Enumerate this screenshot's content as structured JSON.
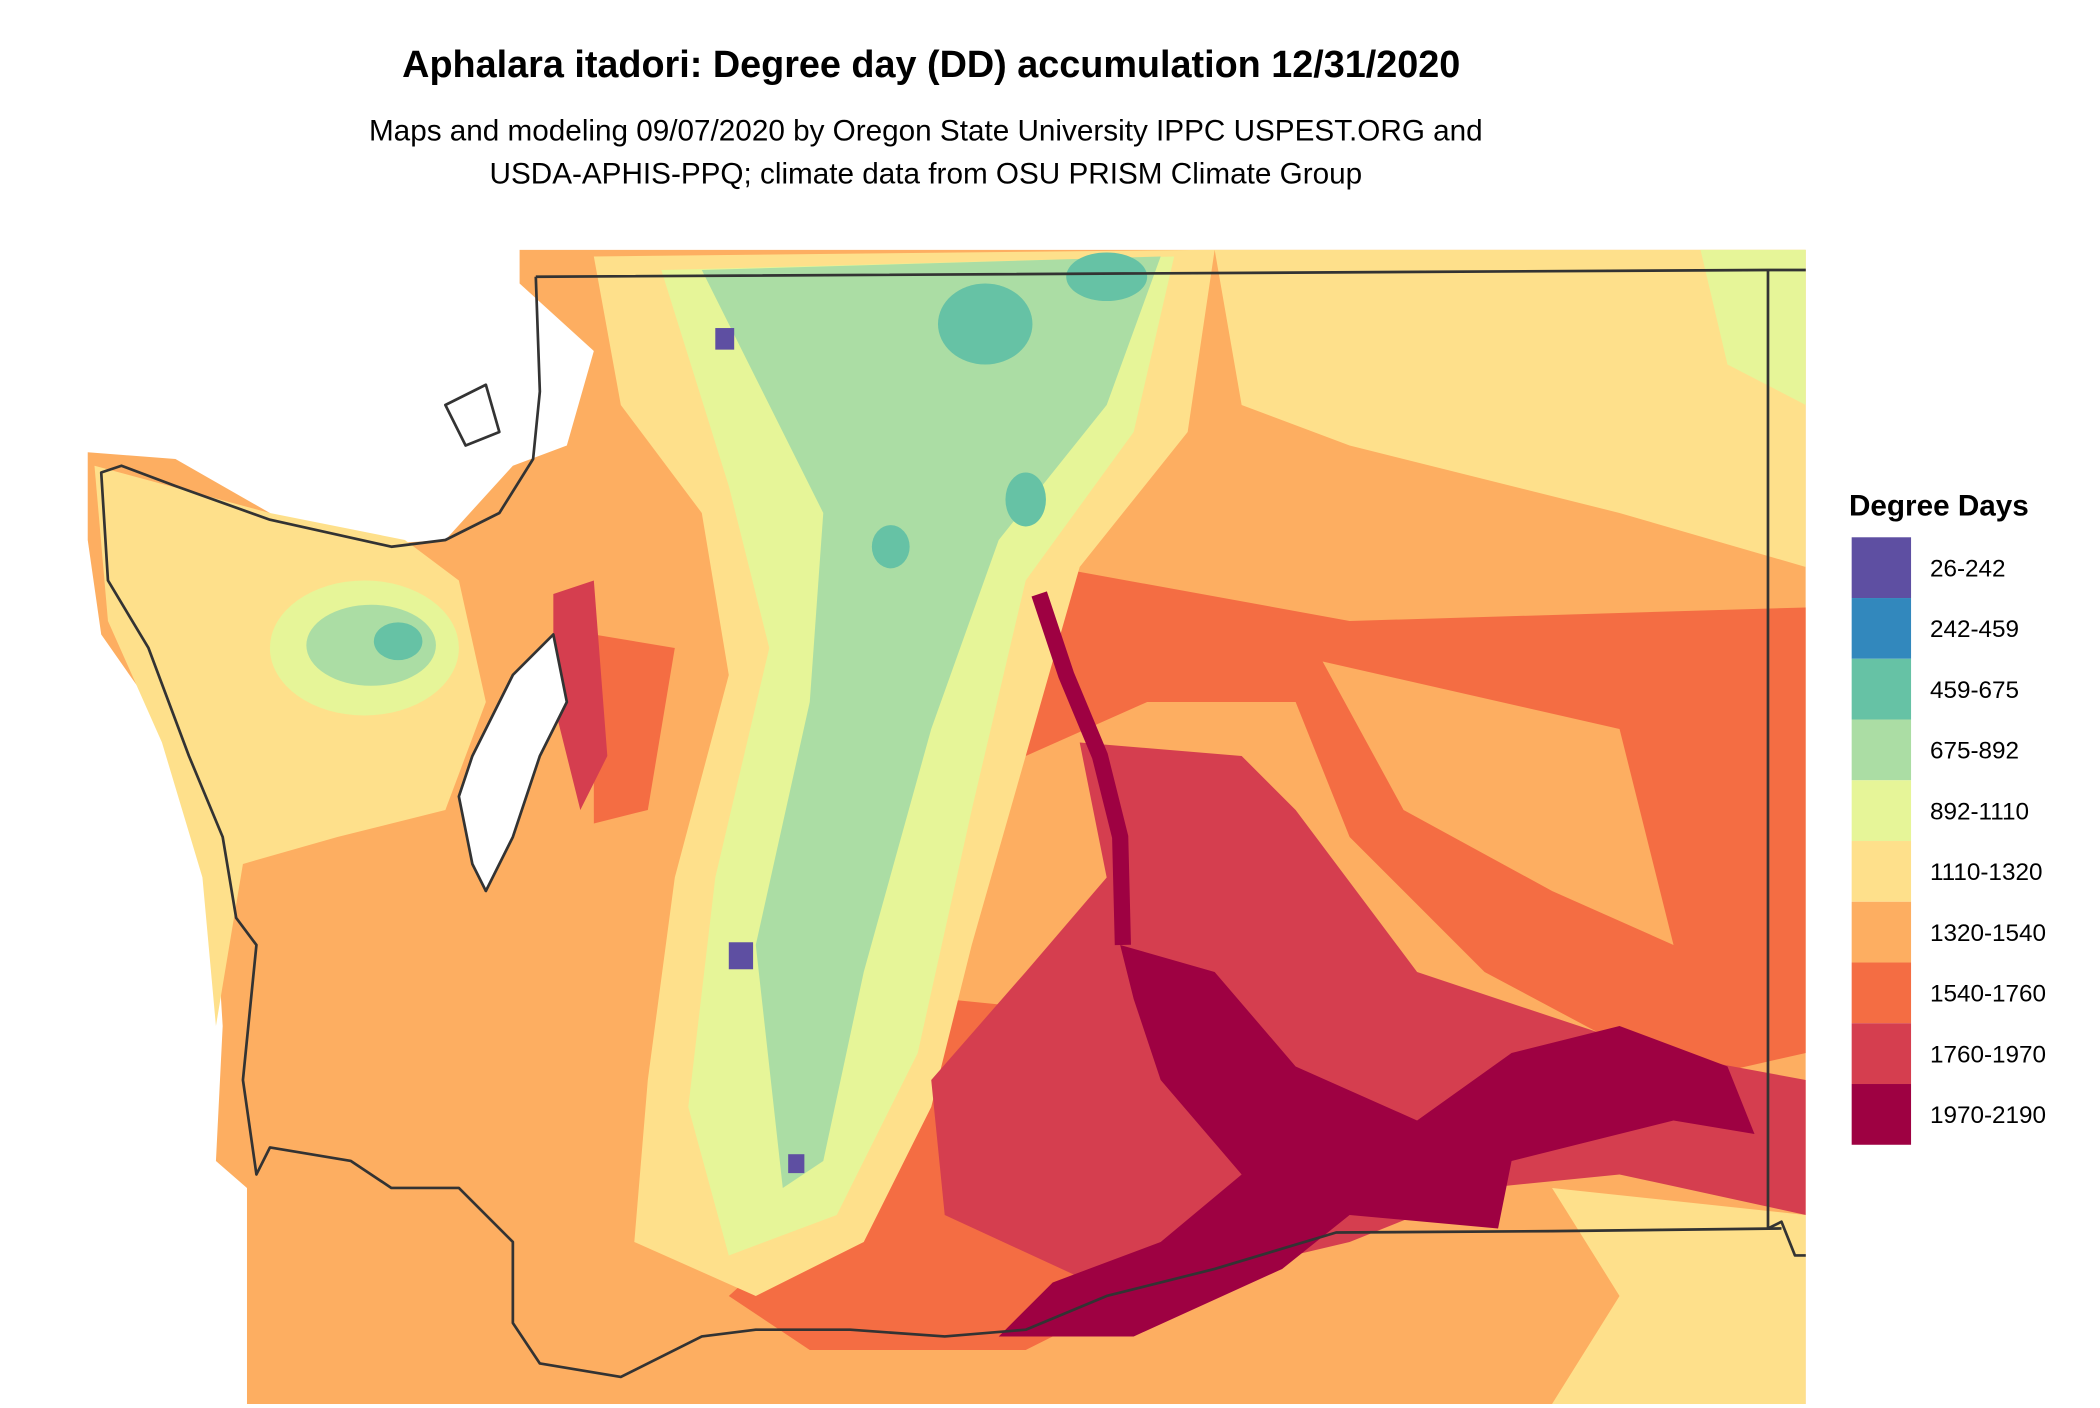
{
  "title": "Aphalara itadori: Degree day (DD) accumulation 12/31/2020",
  "subtitle": [
    "Maps and modeling 09/07/2020 by Oregon State University IPPC USPEST.ORG and",
    "USDA-APHIS-PPQ; climate data from OSU PRISM Climate Group"
  ],
  "legend": {
    "title": "Degree Days",
    "items": [
      {
        "label": "26-242",
        "color": "#5e4fa2"
      },
      {
        "label": "242-459",
        "color": "#3288bd"
      },
      {
        "label": "459-675",
        "color": "#66c2a5"
      },
      {
        "label": "675-892",
        "color": "#abdda4"
      },
      {
        "label": "892-1110",
        "color": "#e6f598"
      },
      {
        "label": "1110-1320",
        "color": "#fee08b"
      },
      {
        "label": "1320-1540",
        "color": "#fdae61"
      },
      {
        "label": "1540-1760",
        "color": "#f46d43"
      },
      {
        "label": "1760-1970",
        "color": "#d53e4f"
      },
      {
        "label": "1970-2190",
        "color": "#9e0142"
      }
    ]
  }
}
